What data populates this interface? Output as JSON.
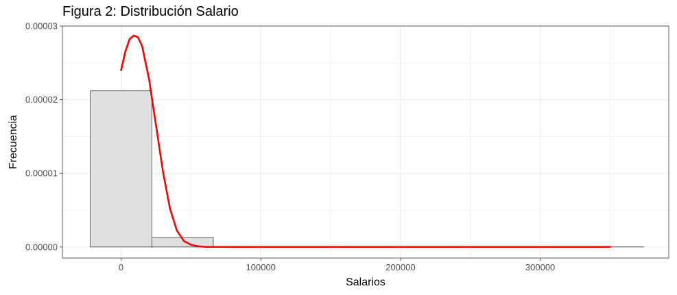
{
  "chart_data": {
    "type": "bar",
    "title": "Figura 2: Distribución Salario",
    "xlabel": "Salarios",
    "ylabel": "Frecuencia",
    "xlim": [
      -42000,
      392000
    ],
    "ylim": [
      -1.5e-06,
      3e-05
    ],
    "grid": true,
    "x_ticks": [
      {
        "value": 0,
        "label": "0"
      },
      {
        "value": 100000,
        "label": "100000"
      },
      {
        "value": 200000,
        "label": "200000"
      },
      {
        "value": 300000,
        "label": "300000"
      }
    ],
    "y_ticks": [
      {
        "value": 0,
        "label": "0.00000"
      },
      {
        "value": 1e-05,
        "label": "0.00001"
      },
      {
        "value": 2e-05,
        "label": "0.00002"
      },
      {
        "value": 3e-05,
        "label": "0.00003"
      }
    ],
    "bins": [
      {
        "x0": -22000,
        "x1": 22000,
        "value": 2.12e-05
      },
      {
        "x0": 22000,
        "x1": 66000,
        "value": 1.3e-06
      },
      {
        "x0": 66000,
        "x1": 110000,
        "value": 0
      },
      {
        "x0": 110000,
        "x1": 154000,
        "value": 0
      },
      {
        "x0": 154000,
        "x1": 198000,
        "value": 0
      },
      {
        "x0": 198000,
        "x1": 242000,
        "value": 0
      },
      {
        "x0": 242000,
        "x1": 286000,
        "value": 0
      },
      {
        "x0": 286000,
        "x1": 330000,
        "value": 0
      },
      {
        "x0": 330000,
        "x1": 374000,
        "value": 1e-08
      }
    ],
    "density_curve": {
      "x": [
        0,
        3000,
        6000,
        9000,
        12000,
        15000,
        20000,
        25000,
        30000,
        35000,
        40000,
        45000,
        50000,
        55000,
        60000,
        80000,
        150000,
        250000,
        350000
      ],
      "y": [
        2.4e-05,
        2.65e-05,
        2.82e-05,
        2.87e-05,
        2.85e-05,
        2.73e-05,
        2.28e-05,
        1.65e-05,
        1.02e-05,
        5.2e-06,
        2.2e-06,
        8e-07,
        3e-07,
        1e-07,
        2e-08,
        0,
        0,
        0,
        0
      ]
    },
    "colors": {
      "bar_fill": "#e0e0e0",
      "bar_stroke": "#222222",
      "curve": "#ff0000",
      "grid": "#ebebeb",
      "panel_border": "#333333"
    }
  }
}
